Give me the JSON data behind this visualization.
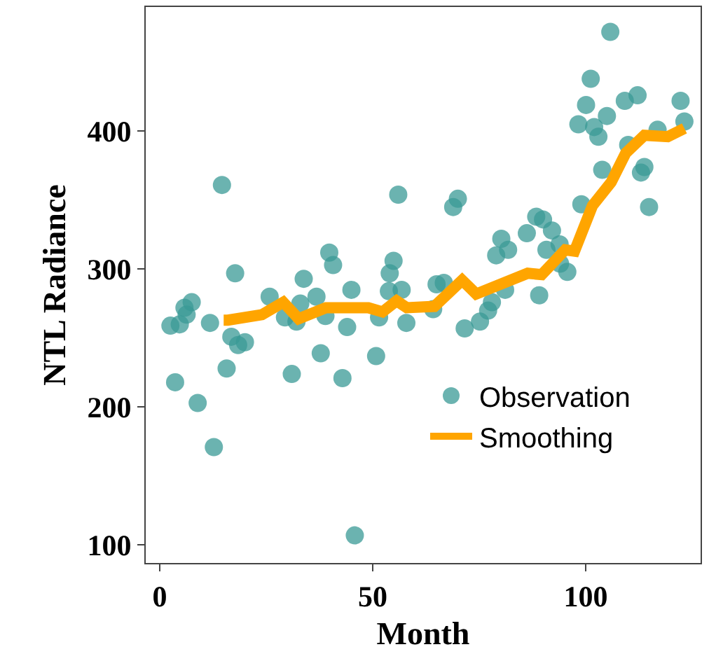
{
  "chart_data": {
    "type": "scatter",
    "xlabel": "Month",
    "ylabel": "NTL Radiance",
    "xlim": [
      -3.3,
      127
    ],
    "xticks": [
      0,
      50,
      100
    ],
    "ylim": [
      87,
      490
    ],
    "yticks": [
      100,
      200,
      300,
      400
    ],
    "grid": false,
    "legend": "bottom right",
    "series": [
      {
        "name": "Observation",
        "color": "#3a9a96",
        "marker": "circle",
        "x": [
          2.5,
          3.6,
          4.7,
          5.8,
          6.3,
          7.5,
          8.9,
          11.8,
          12.7,
          14.6,
          15.7,
          16.8,
          17.7,
          18.4,
          20,
          25.8,
          29.4,
          31,
          32.1,
          33,
          33.8,
          36.8,
          37.8,
          38.9,
          39.8,
          40.7,
          42.9,
          44,
          45,
          45.8,
          50.8,
          51.5,
          53.8,
          54,
          54.9,
          56,
          56.8,
          57.9,
          64.2,
          65,
          66.7,
          68.9,
          70,
          71.6,
          75.2,
          77.1,
          78,
          79,
          80.2,
          81.1,
          81.8,
          86.2,
          88.4,
          89.1,
          90,
          90.8,
          92.1,
          93.9,
          94,
          95.7,
          99,
          98.3,
          100.1,
          101.2,
          102,
          103,
          103.9,
          105,
          105.8,
          109.2,
          110,
          112.2,
          113,
          113.8,
          114.9,
          116.9,
          122.3,
          123.2
        ],
        "values": [
          259,
          218,
          260,
          272,
          267,
          276,
          203,
          261,
          171,
          361,
          228,
          251,
          297,
          245,
          247,
          280,
          265,
          224,
          262,
          275,
          293,
          280,
          239,
          266,
          312,
          303,
          221,
          258,
          285,
          107,
          237,
          265,
          284,
          297,
          306,
          354,
          285,
          261,
          271,
          289,
          290,
          345,
          351,
          257,
          262,
          270,
          276,
          310,
          322,
          285,
          314,
          326,
          338,
          281,
          336,
          314,
          328,
          318,
          304,
          298,
          347,
          405,
          419,
          438,
          403,
          396,
          372,
          411,
          472,
          422,
          390,
          426,
          370,
          374,
          345,
          401,
          422,
          407
        ]
      },
      {
        "name": "Smoothing",
        "type": "line",
        "color": "#ffa500",
        "marker": "none",
        "line_style": "solid",
        "x": [
          15,
          16,
          24,
          29,
          32.6,
          39,
          49,
          52.3,
          55.6,
          58,
          64.5,
          71,
          74.3,
          86.4,
          89.7,
          95.2,
          97.4,
          101.6,
          106,
          109.4,
          113.8,
          119.3,
          123.2
        ],
        "values": [
          263,
          263,
          267,
          276,
          264,
          272,
          272,
          269,
          277,
          272,
          273,
          292,
          282,
          297,
          296,
          314,
          313,
          346,
          363,
          384,
          397,
          396,
          402
        ]
      }
    ]
  }
}
